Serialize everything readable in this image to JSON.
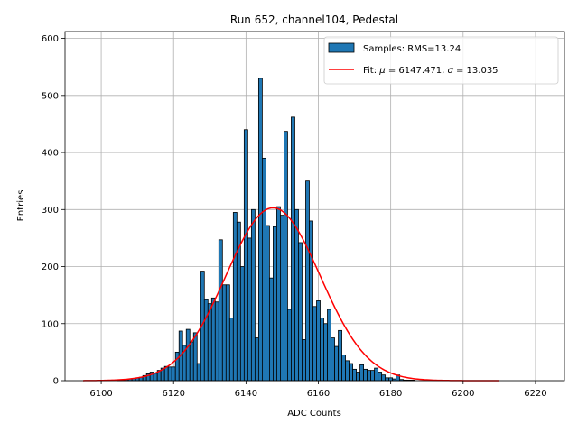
{
  "chart_data": {
    "type": "histogram",
    "title": "Run 652, channel104, Pedestal",
    "xlabel": "ADC Counts",
    "ylabel": "Entries",
    "xlim": [
      6090,
      6228
    ],
    "ylim": [
      0,
      612
    ],
    "xticks": [
      6100,
      6120,
      6140,
      6160,
      6180,
      6200,
      6220
    ],
    "yticks": [
      0,
      100,
      200,
      300,
      400,
      500,
      600
    ],
    "grid": true,
    "legend_position": "top-right",
    "colors": {
      "bars": "#1f77b4",
      "bar_edge": "#000000",
      "fit": "#ff0000",
      "grid": "#b0b0b0"
    },
    "series": [
      {
        "name": "Samples: RMS=13.24",
        "kind": "bars",
        "bin_width": 1,
        "bins": [
          6105,
          6106,
          6107,
          6108,
          6109,
          6110,
          6111,
          6112,
          6113,
          6114,
          6115,
          6116,
          6117,
          6118,
          6119,
          6120,
          6121,
          6122,
          6123,
          6124,
          6125,
          6126,
          6127,
          6128,
          6129,
          6130,
          6131,
          6132,
          6133,
          6134,
          6135,
          6136,
          6137,
          6138,
          6139,
          6140,
          6141,
          6142,
          6143,
          6144,
          6145,
          6146,
          6147,
          6148,
          6149,
          6150,
          6151,
          6152,
          6153,
          6154,
          6155,
          6156,
          6157,
          6158,
          6159,
          6160,
          6161,
          6162,
          6163,
          6164,
          6165,
          6166,
          6167,
          6168,
          6169,
          6170,
          6171,
          6172,
          6173,
          6174,
          6175,
          6176,
          6177,
          6178,
          6179,
          6180,
          6181,
          6182,
          6183,
          6184,
          6185,
          6186,
          6187,
          6188,
          6189,
          6190
        ],
        "values": [
          1,
          1,
          2,
          3,
          4,
          5,
          6,
          9,
          12,
          15,
          13,
          18,
          22,
          25,
          24,
          24,
          50,
          87,
          62,
          90,
          68,
          84,
          30,
          192,
          142,
          135,
          145,
          138,
          247,
          168,
          168,
          110,
          295,
          278,
          200,
          440,
          250,
          300,
          75,
          530,
          390,
          272,
          180,
          270,
          305,
          290,
          437,
          125,
          462,
          300,
          242,
          72,
          350,
          280,
          130,
          140,
          110,
          100,
          125,
          75,
          60,
          88,
          45,
          35,
          30,
          20,
          15,
          28,
          20,
          18,
          18,
          22,
          15,
          10,
          5,
          5,
          3,
          10,
          2,
          1,
          1,
          1,
          0,
          0,
          0,
          0
        ],
        "rms": 13.24
      },
      {
        "name": "Fit: μ = 6147.471, σ = 13.035",
        "kind": "gaussian",
        "mu": 6147.471,
        "sigma": 13.035,
        "amplitude": 303,
        "x_range": [
          6095,
          6210
        ]
      }
    ]
  },
  "legend": {
    "samples_label": "Samples: RMS=13.24",
    "fit_prefix": "Fit: ",
    "fit_mu_symbol": "μ",
    "fit_mu_text": " = 6147.471, ",
    "fit_sigma_symbol": "σ",
    "fit_sigma_text": " = 13.035"
  }
}
